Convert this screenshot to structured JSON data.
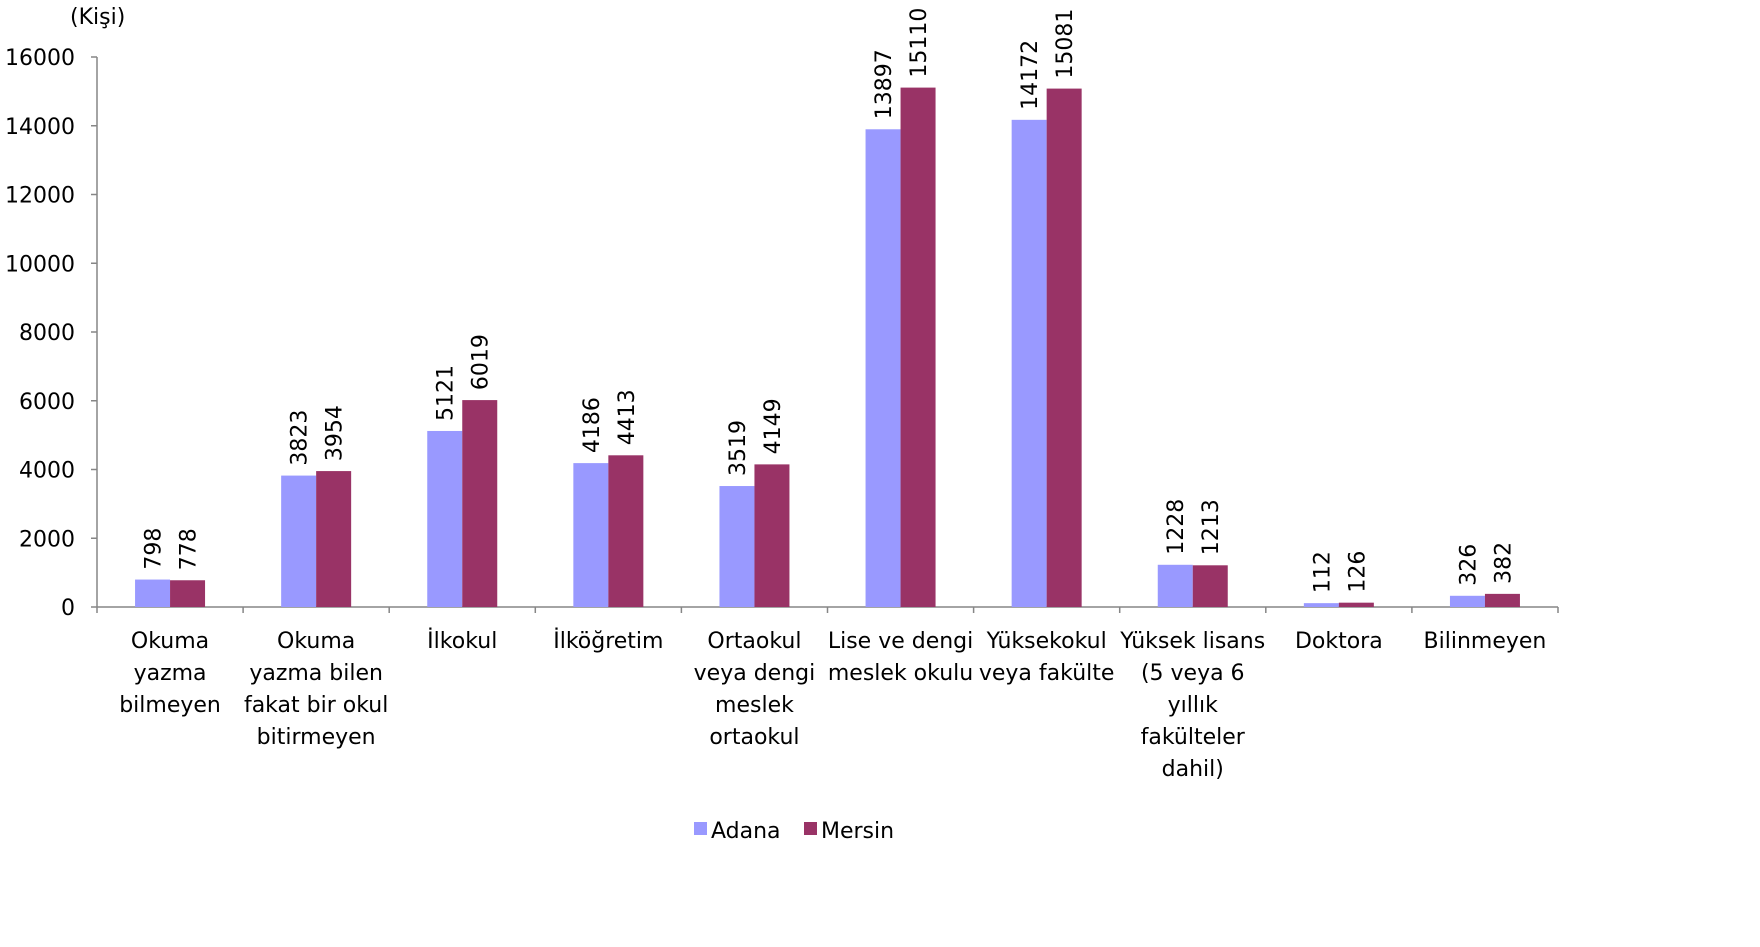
{
  "chart_data": {
    "type": "bar",
    "title": "",
    "unit_label": "(Kişi)",
    "xlabel": "",
    "ylabel": "",
    "ylim": [
      0,
      16000
    ],
    "yticks": [
      0,
      2000,
      4000,
      6000,
      8000,
      10000,
      12000,
      14000,
      16000
    ],
    "grid": false,
    "legend_position": "bottom",
    "categories": [
      [
        "Okuma",
        "yazma",
        "bilmeyen"
      ],
      [
        "Okuma",
        "yazma bilen",
        "fakat bir okul",
        "bitirmeyen"
      ],
      [
        "İlkokul"
      ],
      [
        "İlköğretim"
      ],
      [
        "Ortaokul",
        "veya dengi",
        "meslek",
        "ortaokul"
      ],
      [
        "Lise ve dengi",
        "meslek okulu"
      ],
      [
        "Yüksekokul",
        "veya fakülte"
      ],
      [
        "Yüksek lisans",
        "(5 veya 6",
        "yıllık",
        "fakülteler",
        "dahil)"
      ],
      [
        "Doktora"
      ],
      [
        "Bilinmeyen"
      ]
    ],
    "series": [
      {
        "name": "Adana",
        "color": "#9999ff",
        "values": [
          798,
          3823,
          5121,
          4186,
          3519,
          13897,
          14172,
          1228,
          112,
          326
        ]
      },
      {
        "name": "Mersin",
        "color": "#993366",
        "values": [
          778,
          3954,
          6019,
          4413,
          4149,
          15110,
          15081,
          1213,
          126,
          382
        ]
      }
    ]
  }
}
